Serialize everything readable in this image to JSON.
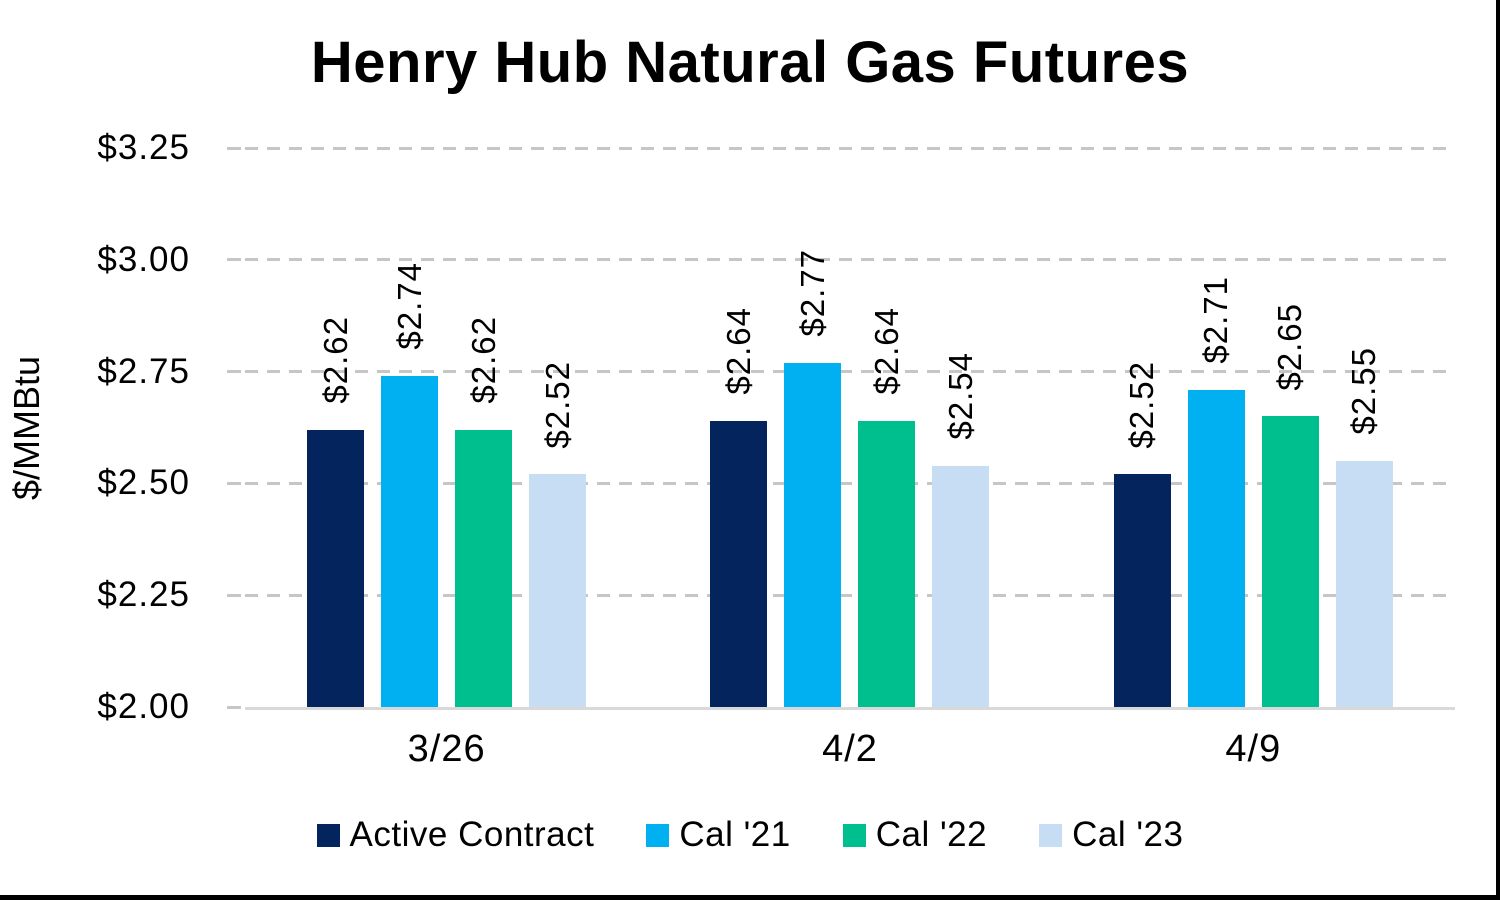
{
  "chart_data": {
    "type": "bar",
    "title": "Henry Hub Natural Gas Futures",
    "ylabel": "$/MMBtu",
    "xlabel": "",
    "categories": [
      "3/26",
      "4/2",
      "4/9"
    ],
    "series": [
      {
        "name": "Active Contract",
        "color": "#04245E",
        "values": [
          2.62,
          2.64,
          2.52
        ],
        "labels": [
          "$2.62",
          "$2.64",
          "$2.52"
        ]
      },
      {
        "name": "Cal '21",
        "color": "#00B0F0",
        "values": [
          2.74,
          2.77,
          2.71
        ],
        "labels": [
          "$2.74",
          "$2.77",
          "$2.71"
        ]
      },
      {
        "name": "Cal '22",
        "color": "#00BF8E",
        "values": [
          2.62,
          2.64,
          2.65
        ],
        "labels": [
          "$2.62",
          "$2.64",
          "$2.65"
        ]
      },
      {
        "name": "Cal '23",
        "color": "#C6DDF3",
        "values": [
          2.52,
          2.54,
          2.55
        ],
        "labels": [
          "$2.52",
          "$2.54",
          "$2.55"
        ]
      }
    ],
    "ylim": [
      2.0,
      3.25
    ],
    "yticks": [
      {
        "value": 3.25,
        "label": "$3.25"
      },
      {
        "value": 3.0,
        "label": "$3.00"
      },
      {
        "value": 2.75,
        "label": "$2.75"
      },
      {
        "value": 2.5,
        "label": "$2.50"
      },
      {
        "value": 2.25,
        "label": "$2.25"
      },
      {
        "value": 2.0,
        "label": "$2.00"
      }
    ],
    "grid": "horizontal-dashed",
    "legend_position": "bottom",
    "colors": {
      "gridline": "#C6C6C6",
      "axis_line": "#D9D9D9",
      "text": "#000000",
      "frame_border": "#000000"
    }
  }
}
